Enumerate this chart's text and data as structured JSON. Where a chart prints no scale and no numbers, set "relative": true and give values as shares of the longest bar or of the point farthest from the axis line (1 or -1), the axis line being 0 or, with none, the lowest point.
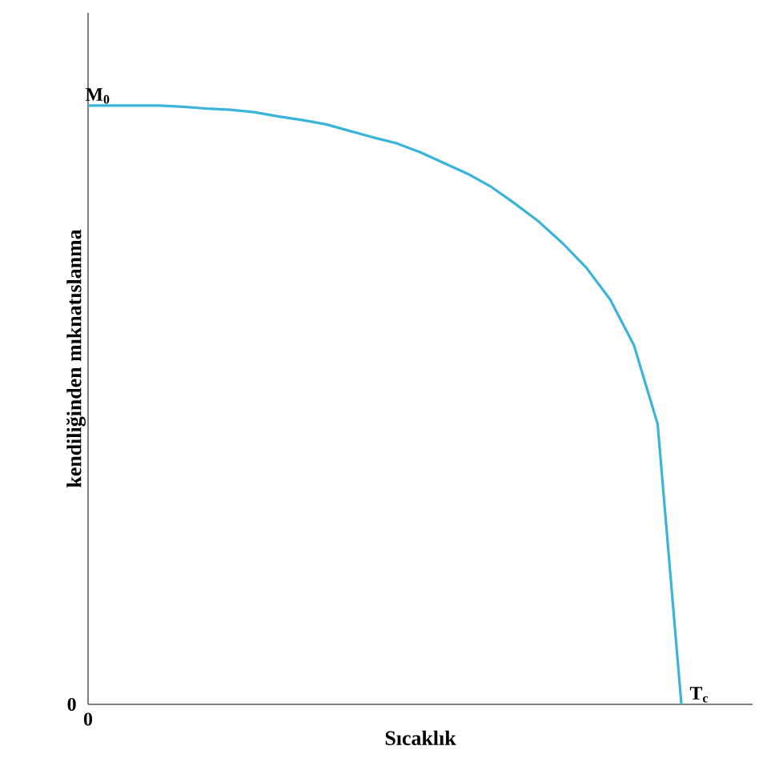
{
  "chart_data": {
    "type": "line",
    "relative": true,
    "xlabel": "Sıcaklık",
    "ylabel": "kendiliğinden mıknatıslanma",
    "categories": [
      null,
      null,
      null,
      null,
      null,
      null,
      null,
      null,
      null,
      null,
      null,
      null,
      null,
      null,
      null,
      null,
      null,
      null,
      null,
      null,
      null,
      null,
      null,
      null,
      null,
      null,
      null,
      null,
      null
    ],
    "series": [
      {
        "color": "#3ab4d8",
        "values": [
          1.0,
          1.0,
          1.0,
          1.0,
          0.998,
          0.995,
          0.993,
          0.989,
          0.982,
          0.976,
          0.969,
          0.958,
          0.947,
          0.937,
          0.922,
          0.904,
          0.886,
          0.864,
          0.836,
          0.806,
          0.77,
          0.729,
          0.676,
          0.6,
          0.468,
          0,
          null,
          null,
          null
        ]
      }
    ],
    "annotations": [
      {
        "text": "M$_{0}$",
        "y": 1.0
      },
      "T$_{c}$",
      "0",
      "0"
    ],
    "marker": "none",
    "line_style": "solid"
  }
}
